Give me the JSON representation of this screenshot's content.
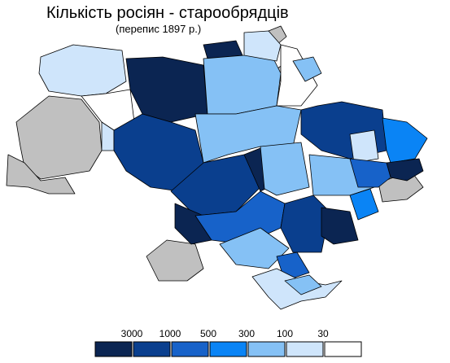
{
  "title": "Кількість росіян - старообрядців",
  "subtitle": "(перепис 1897 р.)",
  "legend": {
    "thresholds": [
      3000,
      1000,
      500,
      300,
      100,
      30
    ],
    "colors": [
      "#0b2552",
      "#0a3f8e",
      "#1762c9",
      "#0a84f5",
      "#85c1f5",
      "#cfe5fb",
      "#ffffff"
    ]
  }
}
